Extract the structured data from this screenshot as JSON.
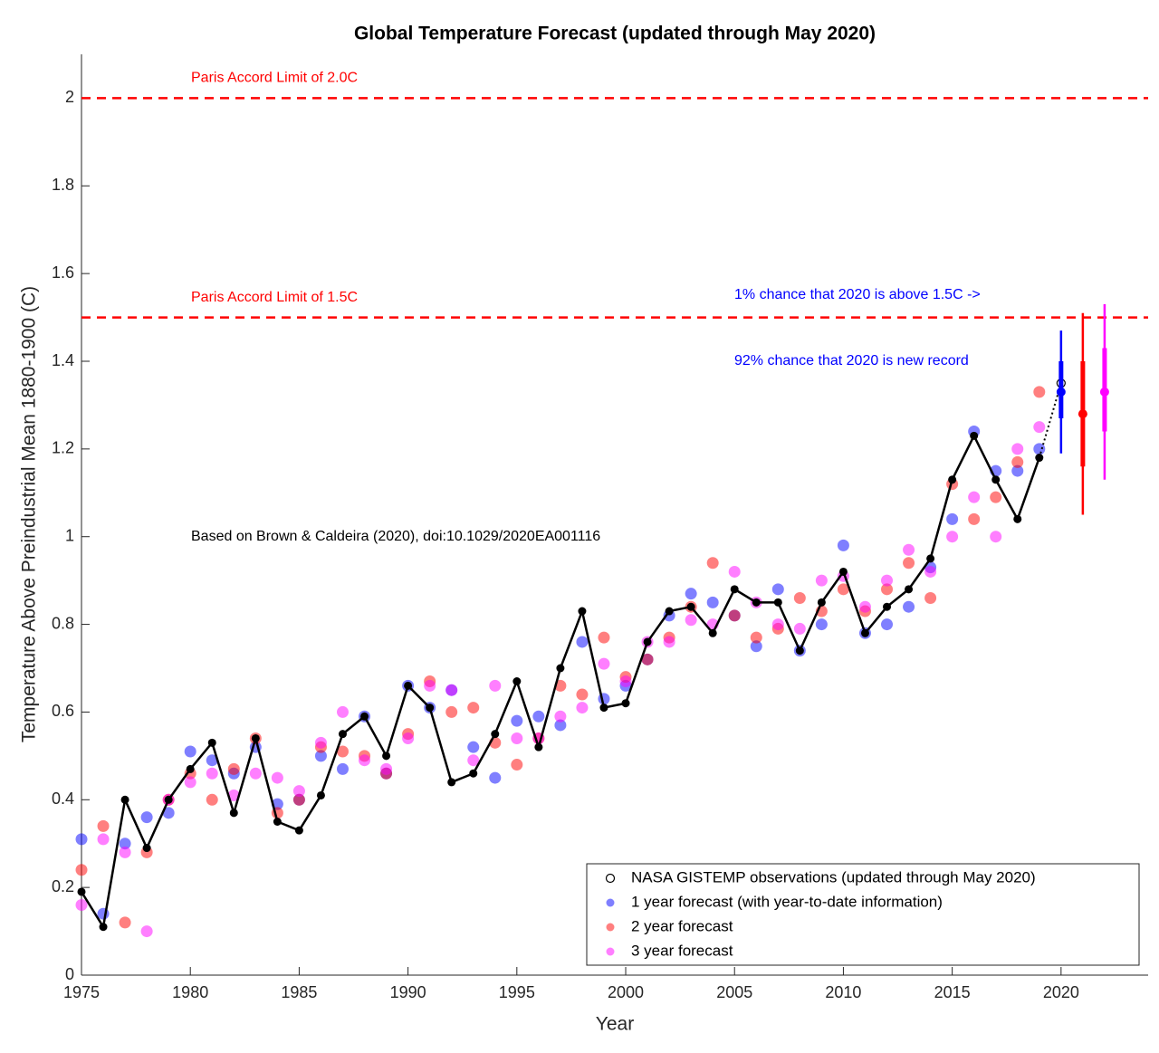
{
  "chart_data": {
    "type": "scatter",
    "title": "Global Temperature Forecast (updated through May 2020)",
    "x_label": "Year",
    "y_label": "Temperature Above Preindustrial Mean 1880-1900 (C)",
    "xlim": [
      1975,
      2024
    ],
    "ylim": [
      0,
      2.1
    ],
    "xticks": [
      1975,
      1980,
      1985,
      1990,
      1995,
      2000,
      2005,
      2010,
      2015,
      2020
    ],
    "yticks": [
      0,
      0.2,
      0.4,
      0.6,
      0.8,
      1,
      1.2,
      1.4,
      1.6,
      1.8,
      2
    ],
    "legend": "lower right",
    "reference_lines": [
      {
        "value": 2,
        "label": "Paris Accord Limit of 2.0C",
        "color": "#ff0000"
      },
      {
        "value": 1.5,
        "label": "Paris Accord Limit of 1.5C",
        "color": "#ff0000"
      }
    ],
    "annotations": [
      {
        "text": "Based on Brown & Caldeira (2020), doi:10.1029/2020EA001116",
        "color": "#000000"
      },
      {
        "text": "1% chance that 2020 is above 1.5C ->",
        "color": "#0000ff"
      },
      {
        "text": "92% chance that 2020 is new record",
        "color": "#0000ff"
      }
    ],
    "current_observation": {
      "x": 2020,
      "value": 1.35
    },
    "series": [
      {
        "name": "NASA GISTEMP observations (updated through May 2020)",
        "color": "#000000",
        "x": [
          1975,
          1976,
          1977,
          1978,
          1979,
          1980,
          1981,
          1982,
          1983,
          1984,
          1985,
          1986,
          1987,
          1988,
          1989,
          1990,
          1991,
          1992,
          1993,
          1994,
          1995,
          1996,
          1997,
          1998,
          1999,
          2000,
          2001,
          2002,
          2003,
          2004,
          2005,
          2006,
          2007,
          2008,
          2009,
          2010,
          2011,
          2012,
          2013,
          2014,
          2015,
          2016,
          2017,
          2018,
          2019
        ],
        "values": [
          0.19,
          0.11,
          0.4,
          0.29,
          0.4,
          0.47,
          0.53,
          0.37,
          0.54,
          0.35,
          0.33,
          0.41,
          0.55,
          0.59,
          0.5,
          0.66,
          0.61,
          0.44,
          0.46,
          0.55,
          0.67,
          0.52,
          0.7,
          0.83,
          0.61,
          0.62,
          0.76,
          0.83,
          0.84,
          0.78,
          0.88,
          0.85,
          0.85,
          0.74,
          0.85,
          0.92,
          0.78,
          0.84,
          0.88,
          0.95,
          1.13,
          1.23,
          1.13,
          1.04,
          1.18
        ]
      },
      {
        "name": "1 year forecast (with year-to-date information)",
        "color": "#0000ff",
        "x": [
          1975,
          1976,
          1977,
          1978,
          1979,
          1980,
          1981,
          1982,
          1983,
          1984,
          1985,
          1986,
          1987,
          1988,
          1989,
          1990,
          1991,
          1992,
          1993,
          1994,
          1995,
          1996,
          1997,
          1998,
          1999,
          2000,
          2001,
          2002,
          2003,
          2004,
          2005,
          2006,
          2007,
          2008,
          2009,
          2010,
          2011,
          2012,
          2013,
          2014,
          2015,
          2016,
          2017,
          2018,
          2019
        ],
        "values": [
          0.31,
          0.14,
          0.3,
          0.36,
          0.37,
          0.51,
          0.49,
          0.46,
          0.52,
          0.39,
          0.4,
          0.5,
          0.47,
          0.59,
          0.46,
          0.66,
          0.61,
          0.65,
          0.52,
          0.45,
          0.58,
          0.59,
          0.57,
          0.76,
          0.63,
          0.66,
          0.72,
          0.82,
          0.87,
          0.85,
          0.82,
          0.75,
          0.88,
          0.74,
          0.8,
          0.98,
          0.78,
          0.8,
          0.84,
          0.93,
          1.04,
          1.24,
          1.15,
          1.15,
          1.2
        ],
        "forecast": {
          "x": 2020,
          "value": 1.33,
          "likely": [
            1.27,
            1.4
          ],
          "range": [
            1.19,
            1.47
          ]
        }
      },
      {
        "name": "2 year forecast",
        "color": "#ff0000",
        "x": [
          1975,
          1976,
          1977,
          1978,
          1979,
          1980,
          1981,
          1982,
          1983,
          1984,
          1985,
          1986,
          1987,
          1988,
          1989,
          1990,
          1991,
          1992,
          1993,
          1994,
          1995,
          1996,
          1997,
          1998,
          1999,
          2000,
          2001,
          2002,
          2003,
          2004,
          2005,
          2006,
          2007,
          2008,
          2009,
          2010,
          2011,
          2012,
          2013,
          2014,
          2015,
          2016,
          2017,
          2018,
          2019
        ],
        "values": [
          0.24,
          0.34,
          0.12,
          0.28,
          0.4,
          0.46,
          0.4,
          0.47,
          0.54,
          0.37,
          0.4,
          0.52,
          0.51,
          0.5,
          0.46,
          0.55,
          0.67,
          0.6,
          0.61,
          0.53,
          0.48,
          0.54,
          0.66,
          0.64,
          0.77,
          0.68,
          0.72,
          0.77,
          0.84,
          0.94,
          0.82,
          0.77,
          0.79,
          0.86,
          0.83,
          0.88,
          0.83,
          0.88,
          0.94,
          0.86,
          1.12,
          1.04,
          1.09,
          1.17,
          1.33
        ],
        "forecast": {
          "x": 2021,
          "value": 1.28,
          "likely": [
            1.16,
            1.4
          ],
          "range": [
            1.05,
            1.51
          ]
        }
      },
      {
        "name": "3 year forecast",
        "color": "#ff00ff",
        "x": [
          1975,
          1976,
          1977,
          1978,
          1979,
          1980,
          1981,
          1982,
          1983,
          1984,
          1985,
          1986,
          1987,
          1988,
          1989,
          1990,
          1991,
          1992,
          1993,
          1994,
          1995,
          1996,
          1997,
          1998,
          1999,
          2000,
          2001,
          2002,
          2003,
          2004,
          2005,
          2006,
          2007,
          2008,
          2009,
          2010,
          2011,
          2012,
          2013,
          2014,
          2015,
          2016,
          2017,
          2018,
          2019
        ],
        "values": [
          0.16,
          0.31,
          0.28,
          0.1,
          0.4,
          0.44,
          0.46,
          0.41,
          0.46,
          0.45,
          0.42,
          0.53,
          0.6,
          0.49,
          0.47,
          0.54,
          0.66,
          0.65,
          0.49,
          0.66,
          0.54,
          0.54,
          0.59,
          0.61,
          0.71,
          0.67,
          0.76,
          0.76,
          0.81,
          0.8,
          0.92,
          0.85,
          0.8,
          0.79,
          0.9,
          0.91,
          0.84,
          0.9,
          0.97,
          0.92,
          1.0,
          1.09,
          1.0,
          1.2,
          1.25
        ],
        "forecast": {
          "x": 2022,
          "value": 1.33,
          "likely": [
            1.24,
            1.43
          ],
          "range": [
            1.13,
            1.53
          ]
        }
      }
    ]
  }
}
